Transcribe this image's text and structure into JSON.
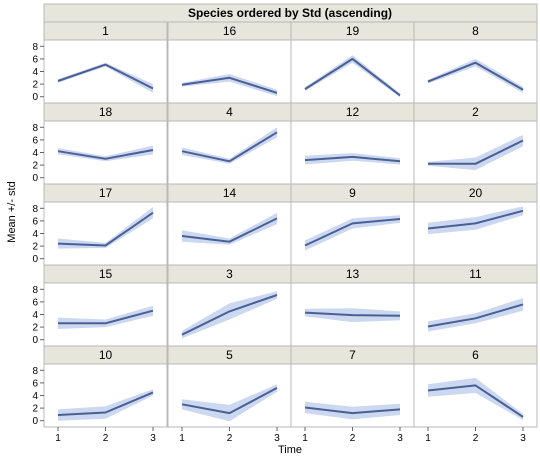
{
  "chart_data": {
    "type": "line",
    "title": "Species ordered by Std (ascending)",
    "xlabel": "Time",
    "ylabel": "Mean +/- std",
    "x": [
      1,
      2,
      3
    ],
    "x_ticks": [
      "1",
      "2",
      "3"
    ],
    "y_ticks": [
      "0",
      "2",
      "4",
      "6",
      "8"
    ],
    "ylim": [
      -1,
      9
    ],
    "grid": false,
    "layout": {
      "rows": 5,
      "cols": 4
    },
    "panels": [
      {
        "name": "1",
        "mean": [
          2.5,
          5.1,
          1.3
        ],
        "std": [
          0.3,
          0.3,
          0.7
        ]
      },
      {
        "name": "16",
        "mean": [
          1.9,
          3.0,
          0.6
        ],
        "std": [
          0.3,
          0.6,
          0.5
        ]
      },
      {
        "name": "19",
        "mean": [
          1.2,
          6.0,
          0.2
        ],
        "std": [
          0.3,
          0.6,
          0.3
        ]
      },
      {
        "name": "8",
        "mean": [
          2.4,
          5.4,
          1.1
        ],
        "std": [
          0.3,
          0.6,
          0.5
        ]
      },
      {
        "name": "18",
        "mean": [
          4.2,
          3.0,
          4.4
        ],
        "std": [
          0.5,
          0.4,
          0.7
        ]
      },
      {
        "name": "4",
        "mean": [
          4.2,
          2.6,
          7.2
        ],
        "std": [
          0.6,
          0.4,
          0.8
        ]
      },
      {
        "name": "12",
        "mean": [
          2.8,
          3.3,
          2.6
        ],
        "std": [
          0.7,
          0.6,
          0.5
        ]
      },
      {
        "name": "2",
        "mean": [
          2.2,
          2.2,
          5.9
        ],
        "std": [
          0.3,
          1.0,
          0.9
        ]
      },
      {
        "name": "17",
        "mean": [
          2.4,
          2.1,
          7.3
        ],
        "std": [
          0.8,
          0.4,
          0.9
        ]
      },
      {
        "name": "14",
        "mean": [
          3.6,
          2.7,
          6.4
        ],
        "std": [
          0.9,
          0.5,
          0.9
        ]
      },
      {
        "name": "9",
        "mean": [
          2.1,
          5.6,
          6.3
        ],
        "std": [
          0.8,
          0.8,
          0.6
        ]
      },
      {
        "name": "20",
        "mean": [
          4.8,
          5.6,
          7.6
        ],
        "std": [
          0.9,
          1.0,
          0.7
        ]
      },
      {
        "name": "15",
        "mean": [
          2.6,
          2.6,
          4.6
        ],
        "std": [
          0.9,
          0.6,
          0.8
        ]
      },
      {
        "name": "3",
        "mean": [
          0.8,
          4.5,
          7.1
        ],
        "std": [
          0.6,
          1.3,
          0.6
        ]
      },
      {
        "name": "13",
        "mean": [
          4.3,
          3.9,
          3.8
        ],
        "std": [
          0.6,
          1.1,
          0.7
        ]
      },
      {
        "name": "11",
        "mean": [
          2.1,
          3.4,
          5.6
        ],
        "std": [
          0.8,
          0.8,
          1.0
        ]
      },
      {
        "name": "10",
        "mean": [
          0.9,
          1.3,
          4.5
        ],
        "std": [
          0.9,
          1.0,
          0.5
        ]
      },
      {
        "name": "5",
        "mean": [
          2.6,
          1.2,
          5.2
        ],
        "std": [
          0.8,
          1.3,
          0.6
        ]
      },
      {
        "name": "7",
        "mean": [
          2.1,
          1.2,
          1.8
        ],
        "std": [
          0.9,
          1.0,
          0.9
        ]
      },
      {
        "name": "6",
        "mean": [
          4.8,
          5.6,
          0.6
        ],
        "std": [
          1.0,
          1.2,
          0.5
        ]
      }
    ]
  }
}
